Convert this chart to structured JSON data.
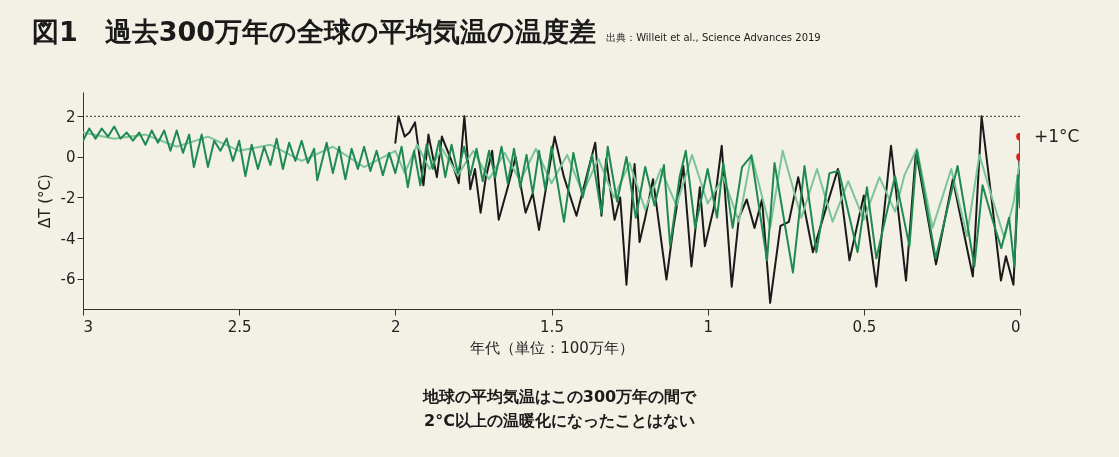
{
  "chart_data": {
    "type": "line",
    "title": "図1　過去300万年の全球の平均気温の温度差",
    "subtitle": "出典：Willeit et al., Science Advances 2019",
    "xlabel": "年代（単位：100万年）",
    "ylabel": "ΔT (°C)",
    "xlim": [
      3,
      0
    ],
    "xticks": [
      3,
      2.5,
      2,
      1.5,
      1,
      0.5,
      0
    ],
    "ylim": [
      -7.5,
      3.2
    ],
    "yticks": [
      -6,
      -4,
      -2,
      0,
      2
    ],
    "ref_lines": [
      {
        "axis": "y",
        "value": 2,
        "color": "#333333",
        "line_style": "dotted"
      }
    ],
    "annotations": [
      {
        "text": "+1°C",
        "x": 0,
        "y": 1
      },
      "地球の平均気温はこの300万年の間で\n2°C以上の温暖化になったことはない"
    ],
    "series": [
      {
        "color": "#1a1a1a",
        "x": [
          2.0,
          1.99,
          1.97,
          1.955,
          1.937,
          1.91,
          1.894,
          1.867,
          1.851,
          1.82,
          1.797,
          1.779,
          1.76,
          1.745,
          1.727,
          1.71,
          1.69,
          1.669,
          1.64,
          1.615,
          1.583,
          1.56,
          1.54,
          1.49,
          1.46,
          1.42,
          1.36,
          1.34,
          1.325,
          1.298,
          1.28,
          1.26,
          1.234,
          1.218,
          1.2,
          1.175,
          1.132,
          1.11,
          1.078,
          1.052,
          1.025,
          1.009,
          0.98,
          0.955,
          0.923,
          0.9,
          0.875,
          0.85,
          0.826,
          0.8,
          0.767,
          0.74,
          0.71,
          0.663,
          0.64,
          0.583,
          0.546,
          0.5,
          0.46,
          0.413,
          0.365,
          0.333,
          0.269,
          0.215,
          0.151,
          0.123,
          0.087,
          0.061,
          0.045,
          0.021,
          0.002
        ],
        "values": [
          0.7,
          2.0,
          1.0,
          1.2,
          1.7,
          -1.4,
          1.1,
          -1.0,
          1.0,
          -0.2,
          -1.3,
          2.0,
          -1.6,
          -0.6,
          -2.75,
          -1.0,
          0.3,
          -3.1,
          -1.5,
          0.0,
          -2.75,
          -1.8,
          -3.6,
          1.0,
          -1.0,
          -2.9,
          0.7,
          -2.9,
          -0.1,
          -3.1,
          -2.0,
          -6.3,
          -0.35,
          -4.2,
          -3.0,
          -1.1,
          -6.05,
          -3.5,
          -0.45,
          -5.4,
          -1.5,
          -4.4,
          -2.5,
          0.55,
          -6.4,
          -3.0,
          -2.1,
          -3.5,
          -2.1,
          -7.2,
          -3.4,
          -3.2,
          -1.0,
          -4.7,
          -3.5,
          -0.6,
          -5.1,
          -1.9,
          -6.4,
          0.55,
          -6.1,
          0.3,
          -5.3,
          -1.1,
          -5.9,
          2.0,
          -2.6,
          -6.1,
          -4.9,
          -6.3,
          -0.1
        ]
      },
      {
        "color": "#7cc49a",
        "x": [
          3.0,
          2.9,
          2.8,
          2.7,
          2.6,
          2.5,
          2.4,
          2.3,
          2.2,
          2.1,
          2.0,
          1.97,
          1.93,
          1.89,
          1.85,
          1.8,
          1.75,
          1.7,
          1.65,
          1.6,
          1.55,
          1.5,
          1.45,
          1.4,
          1.35,
          1.3,
          1.25,
          1.2,
          1.15,
          1.1,
          1.05,
          1.0,
          0.95,
          0.9,
          0.86,
          0.8,
          0.76,
          0.7,
          0.65,
          0.6,
          0.55,
          0.5,
          0.45,
          0.4,
          0.37,
          0.33,
          0.28,
          0.22,
          0.17,
          0.13,
          0.09,
          0.05,
          0.02,
          0.0
        ],
        "values": [
          1.2,
          0.9,
          1.1,
          0.5,
          1.0,
          0.3,
          0.6,
          -0.2,
          0.5,
          -0.5,
          0.3,
          -0.8,
          0.6,
          -0.6,
          0.4,
          -0.9,
          0.3,
          -1.1,
          0.2,
          -1.2,
          0.4,
          -1.3,
          0.1,
          -1.8,
          -0.1,
          -2.0,
          -0.3,
          -2.6,
          -0.6,
          -2.4,
          0.1,
          -2.3,
          -1.0,
          -3.2,
          0.1,
          -3.5,
          0.3,
          -3.0,
          -0.6,
          -3.2,
          -1.2,
          -3.1,
          -1.0,
          -2.7,
          -0.9,
          0.4,
          -3.5,
          -0.6,
          -3.9,
          0.1,
          -2.0,
          -4.0,
          -2.2,
          -0.2
        ]
      },
      {
        "color": "#1e8a4f",
        "x": [
          3.0,
          2.98,
          2.96,
          2.94,
          2.92,
          2.9,
          2.88,
          2.86,
          2.84,
          2.82,
          2.8,
          2.78,
          2.76,
          2.74,
          2.72,
          2.7,
          2.68,
          2.66,
          2.645,
          2.62,
          2.6,
          2.58,
          2.56,
          2.54,
          2.52,
          2.5,
          2.48,
          2.46,
          2.44,
          2.42,
          2.4,
          2.38,
          2.36,
          2.34,
          2.32,
          2.3,
          2.28,
          2.26,
          2.25,
          2.22,
          2.2,
          2.18,
          2.16,
          2.14,
          2.12,
          2.1,
          2.08,
          2.06,
          2.04,
          2.02,
          2.0,
          1.98,
          1.96,
          1.94,
          1.92,
          1.9,
          1.88,
          1.86,
          1.84,
          1.82,
          1.8,
          1.78,
          1.76,
          1.74,
          1.72,
          1.7,
          1.68,
          1.66,
          1.64,
          1.62,
          1.6,
          1.58,
          1.56,
          1.54,
          1.52,
          1.5,
          1.46,
          1.43,
          1.4,
          1.37,
          1.34,
          1.32,
          1.29,
          1.26,
          1.23,
          1.2,
          1.17,
          1.14,
          1.12,
          1.09,
          1.07,
          1.04,
          1.0,
          0.97,
          0.95,
          0.92,
          0.89,
          0.86,
          0.81,
          0.786,
          0.727,
          0.69,
          0.652,
          0.61,
          0.58,
          0.52,
          0.49,
          0.46,
          0.4,
          0.354,
          0.33,
          0.27,
          0.2,
          0.146,
          0.12,
          0.09,
          0.06,
          0.035,
          0.018,
          0.007,
          0.0
        ],
        "values": [
          0.8,
          1.4,
          0.9,
          1.4,
          1.0,
          1.5,
          0.9,
          1.2,
          0.8,
          1.2,
          0.6,
          1.3,
          0.7,
          1.3,
          0.3,
          1.3,
          0.2,
          1.1,
          -0.5,
          1.1,
          -0.5,
          0.8,
          0.3,
          0.9,
          -0.2,
          0.8,
          -0.95,
          0.6,
          -0.6,
          0.5,
          -0.4,
          0.9,
          -0.6,
          0.7,
          -0.2,
          0.8,
          -0.3,
          0.4,
          -1.15,
          0.7,
          -0.8,
          0.5,
          -1.1,
          0.4,
          -0.6,
          0.5,
          -0.7,
          0.3,
          -0.9,
          0.2,
          -0.8,
          0.5,
          -1.5,
          0.3,
          -1.4,
          0.6,
          -0.6,
          0.8,
          -1.0,
          0.6,
          -0.8,
          0.5,
          -0.9,
          0.4,
          -1.2,
          0.3,
          -1.0,
          0.5,
          -1.3,
          0.4,
          -1.5,
          0.1,
          -1.8,
          0.3,
          -1.6,
          0.5,
          -3.2,
          0.2,
          -2.0,
          0.1,
          -2.8,
          0.5,
          -2.2,
          0.0,
          -3.0,
          -0.5,
          -2.4,
          -0.4,
          -4.4,
          -1.0,
          0.3,
          -3.5,
          -0.6,
          -3.0,
          -0.3,
          -3.5,
          -0.5,
          0.05,
          -5.1,
          -0.3,
          -5.7,
          -0.45,
          -4.7,
          -0.8,
          -0.7,
          -4.7,
          -1.5,
          -5.0,
          -0.95,
          -4.4,
          0.3,
          -5.0,
          -0.45,
          -5.4,
          -1.4,
          -3.0,
          -4.5,
          -3.0,
          -5.4,
          -0.9,
          -2.5
        ]
      },
      {
        "color": "#e0201b",
        "marker": "circle",
        "x": [
          0,
          0
        ],
        "values": [
          0,
          1
        ]
      }
    ]
  }
}
